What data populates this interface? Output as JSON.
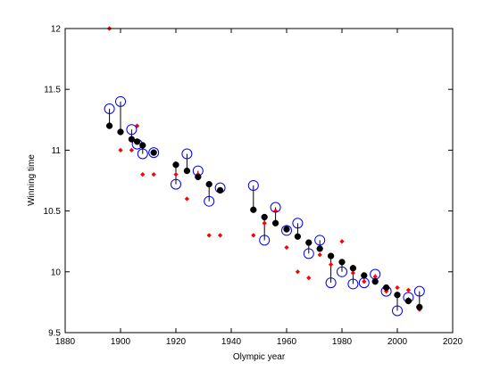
{
  "chart_data": {
    "type": "scatter",
    "xlabel": "Olympic year",
    "ylabel": "Winning time",
    "xlim": [
      1880,
      2020
    ],
    "ylim": [
      9.5,
      12
    ],
    "xticks": [
      1880,
      1900,
      1920,
      1940,
      1960,
      1980,
      2000,
      2020
    ],
    "yticks": [
      9.5,
      10,
      10.5,
      11,
      11.5,
      12
    ],
    "ytick_labels": [
      "9.5",
      "10",
      "10.5",
      "11",
      "11.5",
      "12"
    ],
    "grid": false,
    "legend": "none",
    "x": [
      1896,
      1900,
      1904,
      1906,
      1908,
      1912,
      1920,
      1924,
      1928,
      1932,
      1936,
      1948,
      1952,
      1956,
      1960,
      1964,
      1968,
      1972,
      1976,
      1980,
      1984,
      1988,
      1992,
      1996,
      2000,
      2004,
      2008
    ],
    "series": [
      {
        "marker": "red-diamond",
        "color": "#ff0000",
        "values": [
          12.0,
          11.0,
          11.0,
          11.2,
          10.8,
          10.8,
          10.8,
          10.6,
          10.8,
          10.3,
          10.3,
          10.3,
          10.4,
          10.5,
          10.2,
          10.0,
          9.95,
          10.14,
          10.06,
          10.25,
          9.99,
          9.92,
          9.96,
          9.84,
          9.87,
          9.85,
          9.69
        ]
      },
      {
        "marker": "black-dot",
        "color": "#000000",
        "values": [
          11.2,
          11.15,
          11.09,
          11.07,
          11.04,
          10.98,
          10.88,
          10.83,
          10.78,
          10.72,
          10.67,
          10.51,
          10.45,
          10.4,
          10.35,
          10.29,
          10.24,
          10.19,
          10.13,
          10.08,
          10.03,
          9.97,
          9.92,
          9.87,
          9.81,
          9.76,
          9.71
        ]
      },
      {
        "marker": "blue-open-circle",
        "color": "#0000ff",
        "values": [
          11.34,
          11.4,
          11.17,
          11.05,
          10.97,
          10.98,
          10.72,
          10.97,
          10.83,
          10.58,
          10.69,
          10.71,
          10.26,
          10.53,
          10.34,
          10.4,
          10.15,
          10.26,
          9.91,
          10.0,
          9.9,
          9.91,
          9.98,
          9.84,
          9.68,
          9.79,
          9.84
        ]
      }
    ]
  }
}
